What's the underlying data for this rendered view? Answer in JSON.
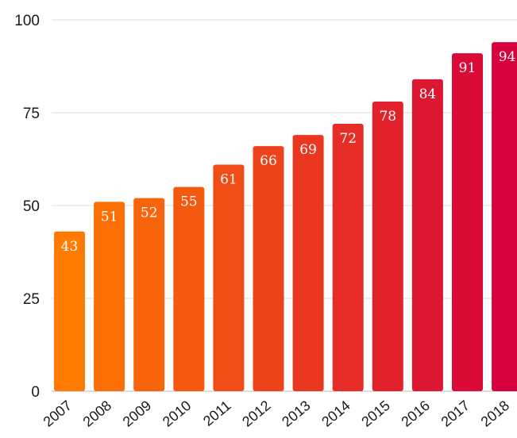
{
  "chart_data": {
    "type": "bar",
    "title": "",
    "xlabel": "",
    "ylabel": "",
    "categories": [
      "2007",
      "2008",
      "2009",
      "2010",
      "2011",
      "2012",
      "2013",
      "2014",
      "2015",
      "2016",
      "2017",
      "2018"
    ],
    "values": [
      43,
      51,
      52,
      55,
      61,
      66,
      69,
      72,
      78,
      84,
      91,
      94
    ],
    "ylim": [
      0,
      100
    ],
    "yticks": [
      0,
      25,
      50,
      75,
      100
    ],
    "grid": true,
    "data_labels": true,
    "colors": {
      "gradient_start": "#ff7a00",
      "gradient_end": "#d6003c",
      "data_label": "#ffffff",
      "grid": "#dcdcdc"
    }
  }
}
